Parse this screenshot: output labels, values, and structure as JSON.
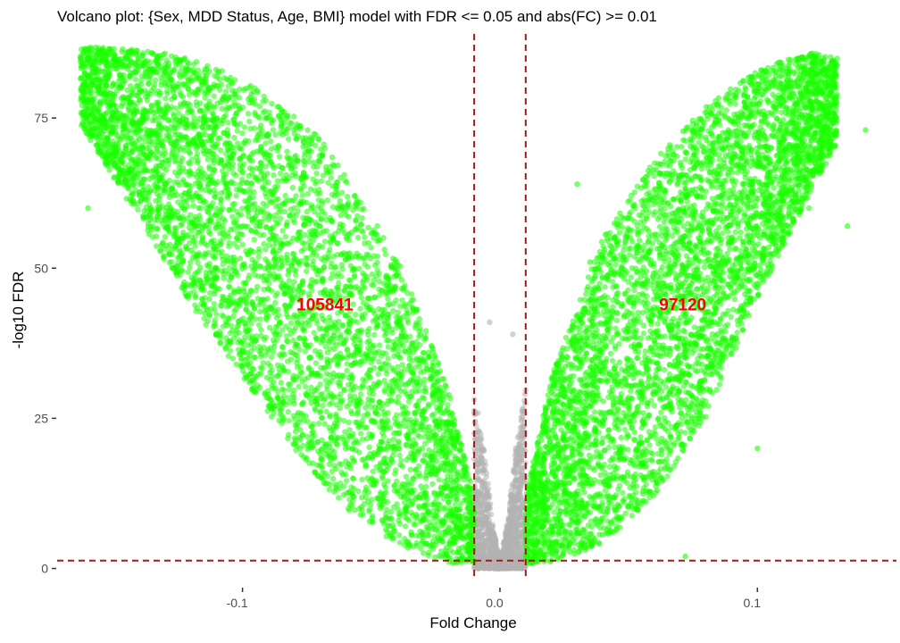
{
  "chart_data": {
    "type": "scatter",
    "title": "Volcano plot: {Sex, MDD Status, Age, BMI} model with FDR <= 0.05 and abs(FC) >= 0.01",
    "xlabel": "Fold Change",
    "ylabel": "-log10 FDR",
    "xlim": [
      -0.172,
      0.154
    ],
    "ylim": [
      -2,
      89
    ],
    "x_ticks": [
      {
        "value": -0.1,
        "label": "-0.1"
      },
      {
        "value": 0.0,
        "label": "0.0"
      },
      {
        "value": 0.1,
        "label": "0.1"
      }
    ],
    "y_ticks": [
      {
        "value": 0,
        "label": "0"
      },
      {
        "value": 25,
        "label": "25"
      },
      {
        "value": 50,
        "label": "50"
      },
      {
        "value": 75,
        "label": "75"
      }
    ],
    "grid": false,
    "threshold_lines": {
      "fc_left": -0.01,
      "fc_right": 0.01,
      "fdr_log10": 1.3,
      "color": "#9b1c1c"
    },
    "series": [
      {
        "key": "sig_down",
        "color": "#1aff00",
        "count": 105841,
        "count_label": "105841",
        "envelope": {
          "x_min": -0.163,
          "x_max": -0.01,
          "y_at_xmin": 81,
          "y_at_xmax": 0,
          "upper_curve": [
            [
              -0.163,
              87
            ],
            [
              -0.13,
              86
            ],
            [
              -0.1,
              82
            ],
            [
              -0.07,
              72
            ],
            [
              -0.04,
              52
            ],
            [
              -0.02,
              30
            ],
            [
              -0.01,
              12
            ]
          ],
          "lower_curve": [
            [
              -0.163,
              74
            ],
            [
              -0.14,
              58
            ],
            [
              -0.12,
              44
            ],
            [
              -0.1,
              32
            ],
            [
              -0.08,
              20
            ],
            [
              -0.06,
              10
            ],
            [
              -0.04,
              4
            ],
            [
              -0.02,
              1
            ],
            [
              -0.01,
              0.5
            ]
          ]
        }
      },
      {
        "key": "sig_up",
        "color": "#1aff00",
        "count": 97120,
        "count_label": "97120",
        "envelope": {
          "x_min": 0.01,
          "x_max": 0.131,
          "upper_curve": [
            [
              0.01,
              12
            ],
            [
              0.02,
              32
            ],
            [
              0.04,
              55
            ],
            [
              0.06,
              68
            ],
            [
              0.08,
              77
            ],
            [
              0.1,
              83
            ],
            [
              0.12,
              86
            ],
            [
              0.13,
              85
            ]
          ],
          "lower_curve": [
            [
              0.01,
              0.5
            ],
            [
              0.02,
              1
            ],
            [
              0.04,
              4
            ],
            [
              0.06,
              12
            ],
            [
              0.08,
              25
            ],
            [
              0.1,
              45
            ],
            [
              0.12,
              62
            ],
            [
              0.13,
              70
            ]
          ]
        }
      },
      {
        "key": "not_sig",
        "color": "#b3b3b3",
        "envelope": {
          "x_min": -0.01,
          "x_max": 0.01,
          "upper_curve": [
            [
              -0.01,
              30
            ],
            [
              -0.006,
              20
            ],
            [
              -0.003,
              8
            ],
            [
              0.0,
              1
            ],
            [
              0.003,
              8
            ],
            [
              0.006,
              20
            ],
            [
              0.01,
              30
            ]
          ],
          "lower_curve": [
            [
              -0.01,
              0
            ],
            [
              0.0,
              0
            ],
            [
              0.01,
              0
            ]
          ]
        }
      }
    ],
    "annotations": [
      {
        "text": "105841",
        "x": -0.068,
        "y": 44,
        "color": "#ff0000"
      },
      {
        "text": "97120",
        "x": 0.071,
        "y": 44,
        "color": "#ff0000"
      }
    ],
    "outlier_points": [
      {
        "x": -0.16,
        "y": 60,
        "group": "sig_down"
      },
      {
        "x": -0.12,
        "y": 53,
        "group": "sig_down"
      },
      {
        "x": -0.115,
        "y": 44,
        "group": "sig_down"
      },
      {
        "x": -0.1,
        "y": 36,
        "group": "sig_down"
      },
      {
        "x": -0.09,
        "y": 29,
        "group": "sig_down"
      },
      {
        "x": -0.06,
        "y": 20,
        "group": "sig_down"
      },
      {
        "x": -0.045,
        "y": 14,
        "group": "sig_down"
      },
      {
        "x": -0.004,
        "y": 41,
        "group": "not_sig"
      },
      {
        "x": 0.005,
        "y": 39,
        "group": "not_sig"
      },
      {
        "x": 0.011,
        "y": 3,
        "group": "sig_up"
      },
      {
        "x": 0.1,
        "y": 20,
        "group": "sig_up"
      },
      {
        "x": 0.142,
        "y": 73,
        "group": "sig_up"
      },
      {
        "x": 0.135,
        "y": 57,
        "group": "sig_up"
      },
      {
        "x": 0.12,
        "y": 60,
        "group": "sig_up"
      },
      {
        "x": 0.03,
        "y": 64,
        "group": "sig_up"
      },
      {
        "x": 0.035,
        "y": 51,
        "group": "sig_up"
      },
      {
        "x": 0.072,
        "y": 2,
        "group": "sig_up"
      }
    ]
  }
}
